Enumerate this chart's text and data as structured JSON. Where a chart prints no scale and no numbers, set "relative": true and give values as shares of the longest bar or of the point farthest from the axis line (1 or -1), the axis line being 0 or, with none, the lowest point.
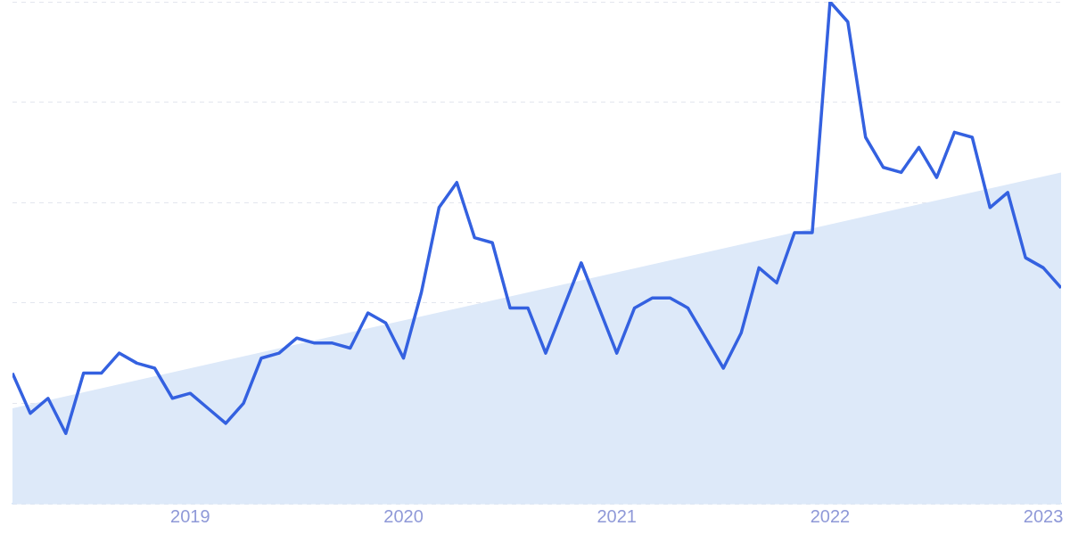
{
  "chart_data": {
    "type": "line",
    "relative": true,
    "grid": "y",
    "legend": false,
    "line_style": "solid",
    "marker": "none",
    "xlim": [
      "2018-03",
      "2023-02"
    ],
    "xticks": [
      "2019",
      "2020",
      "2021",
      "2022",
      "2023"
    ],
    "series": [
      {
        "type": "area",
        "color": "#dde9f9",
        "x": [
          "2018-03",
          "2023-02"
        ],
        "values": [
          0.19,
          0.66
        ]
      },
      {
        "type": "line",
        "color": "#3461e0",
        "x": [
          "2018-03",
          "2018-04",
          "2018-05",
          "2018-06",
          "2018-07",
          "2018-08",
          "2018-09",
          "2018-10",
          "2018-11",
          "2018-12",
          "2019-01",
          "2019-02",
          "2019-03",
          "2019-04",
          "2019-05",
          "2019-06",
          "2019-07",
          "2019-08",
          "2019-09",
          "2019-10",
          "2019-11",
          "2019-12",
          "2020-01",
          "2020-02",
          "2020-03",
          "2020-04",
          "2020-05",
          "2020-06",
          "2020-07",
          "2020-08",
          "2020-09",
          "2020-10",
          "2020-11",
          "2020-12",
          "2021-01",
          "2021-02",
          "2021-03",
          "2021-04",
          "2021-05",
          "2021-06",
          "2021-07",
          "2021-08",
          "2021-09",
          "2021-10",
          "2021-11",
          "2021-12",
          "2022-01",
          "2022-02",
          "2022-03",
          "2022-04",
          "2022-05",
          "2022-06",
          "2022-07",
          "2022-08",
          "2022-09",
          "2022-10",
          "2022-11",
          "2022-12",
          "2023-01",
          "2023-02"
        ],
        "values": [
          0.26,
          0.18,
          0.21,
          0.14,
          0.26,
          0.26,
          0.3,
          0.28,
          0.27,
          0.21,
          0.22,
          0.19,
          0.16,
          0.2,
          0.29,
          0.3,
          0.33,
          0.32,
          0.32,
          0.31,
          0.38,
          0.36,
          0.29,
          0.42,
          0.59,
          0.64,
          0.53,
          0.52,
          0.39,
          0.39,
          0.3,
          0.39,
          0.48,
          0.39,
          0.3,
          0.39,
          0.41,
          0.41,
          0.39,
          0.33,
          0.27,
          0.34,
          0.47,
          0.44,
          0.54,
          0.54,
          1,
          0.96,
          0.73,
          0.67,
          0.66,
          0.71,
          0.65,
          0.74,
          0.73,
          0.59,
          0.62,
          0.49,
          0.47,
          0.43
        ]
      }
    ]
  }
}
